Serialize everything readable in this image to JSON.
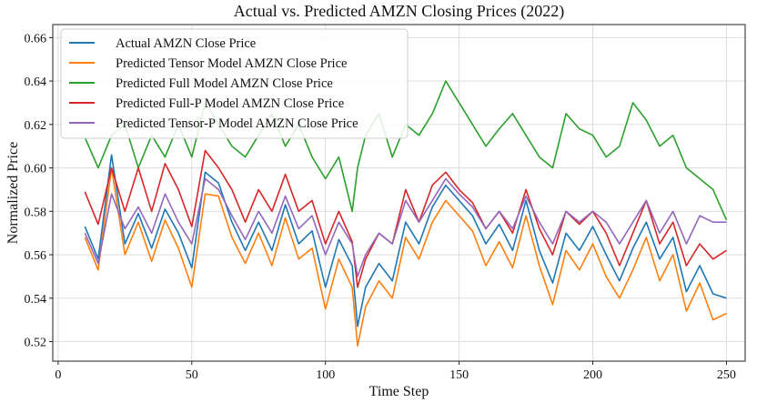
{
  "chart_data": {
    "type": "line",
    "title": "Actual vs. Predicted AMZN Closing Prices (2022)",
    "xlabel": "Time Step",
    "ylabel": "Normalized Price",
    "xlim": [
      -2,
      257
    ],
    "ylim": [
      0.511,
      0.666
    ],
    "xticks": [
      0,
      50,
      100,
      150,
      200,
      250
    ],
    "yticks": [
      0.52,
      0.54,
      0.56,
      0.58,
      0.6,
      0.62,
      0.64,
      0.66
    ],
    "xtick_labels": [
      "0",
      "50",
      "100",
      "150",
      "200",
      "250"
    ],
    "ytick_labels": [
      "0.52",
      "0.54",
      "0.56",
      "0.58",
      "0.60",
      "0.62",
      "0.64",
      "0.66"
    ],
    "grid": true,
    "legend_position": "top-left",
    "x": [
      10,
      15,
      20,
      25,
      30,
      35,
      40,
      45,
      50,
      55,
      60,
      65,
      70,
      75,
      80,
      85,
      90,
      95,
      100,
      105,
      110,
      112,
      115,
      120,
      125,
      130,
      135,
      140,
      145,
      150,
      155,
      160,
      165,
      170,
      175,
      180,
      185,
      190,
      195,
      200,
      205,
      210,
      215,
      220,
      225,
      230,
      235,
      240,
      245,
      250
    ],
    "series": [
      {
        "name": "Actual AMZN Close Price",
        "color": "#1f77b4",
        "values": [
          0.573,
          0.558,
          0.606,
          0.565,
          0.579,
          0.563,
          0.581,
          0.57,
          0.554,
          0.598,
          0.593,
          0.575,
          0.562,
          0.575,
          0.562,
          0.583,
          0.565,
          0.571,
          0.545,
          0.567,
          0.555,
          0.527,
          0.545,
          0.556,
          0.548,
          0.575,
          0.565,
          0.582,
          0.592,
          0.585,
          0.578,
          0.565,
          0.574,
          0.562,
          0.585,
          0.562,
          0.547,
          0.57,
          0.562,
          0.573,
          0.56,
          0.548,
          0.563,
          0.575,
          0.558,
          0.568,
          0.543,
          0.555,
          0.542,
          0.54
        ]
      },
      {
        "name": "Predicted Tensor Model AMZN Close Price",
        "color": "#ff7f0e",
        "values": [
          0.568,
          0.553,
          0.6,
          0.56,
          0.575,
          0.557,
          0.576,
          0.563,
          0.545,
          0.588,
          0.587,
          0.568,
          0.556,
          0.57,
          0.555,
          0.577,
          0.558,
          0.563,
          0.535,
          0.558,
          0.545,
          0.518,
          0.536,
          0.548,
          0.54,
          0.568,
          0.558,
          0.575,
          0.585,
          0.578,
          0.571,
          0.555,
          0.566,
          0.554,
          0.578,
          0.555,
          0.537,
          0.562,
          0.553,
          0.565,
          0.55,
          0.54,
          0.553,
          0.568,
          0.548,
          0.56,
          0.534,
          0.547,
          0.53,
          0.533
        ]
      },
      {
        "name": "Predicted Full Model AMZN Close Price",
        "color": "#2ca02c",
        "values": [
          0.614,
          0.6,
          0.615,
          0.62,
          0.6,
          0.615,
          0.605,
          0.62,
          0.605,
          0.63,
          0.62,
          0.61,
          0.605,
          0.615,
          0.625,
          0.61,
          0.62,
          0.605,
          0.595,
          0.605,
          0.58,
          0.6,
          0.615,
          0.625,
          0.605,
          0.62,
          0.615,
          0.625,
          0.64,
          0.63,
          0.62,
          0.61,
          0.618,
          0.625,
          0.615,
          0.605,
          0.6,
          0.625,
          0.618,
          0.615,
          0.605,
          0.61,
          0.63,
          0.622,
          0.61,
          0.615,
          0.6,
          0.595,
          0.59,
          0.576
        ]
      },
      {
        "name": "Predicted Full-P Model AMZN Close Price",
        "color": "#d62728",
        "values": [
          0.589,
          0.574,
          0.6,
          0.58,
          0.6,
          0.58,
          0.602,
          0.59,
          0.573,
          0.608,
          0.6,
          0.59,
          0.575,
          0.59,
          0.58,
          0.597,
          0.58,
          0.585,
          0.565,
          0.58,
          0.566,
          0.545,
          0.558,
          0.57,
          0.565,
          0.59,
          0.575,
          0.592,
          0.598,
          0.59,
          0.584,
          0.572,
          0.58,
          0.57,
          0.59,
          0.572,
          0.56,
          0.58,
          0.574,
          0.58,
          0.57,
          0.555,
          0.57,
          0.585,
          0.565,
          0.575,
          0.555,
          0.565,
          0.558,
          0.562
        ]
      },
      {
        "name": "Predicted Tensor-P Model AMZN Close Price",
        "color": "#9467bd",
        "values": [
          0.57,
          0.556,
          0.588,
          0.572,
          0.582,
          0.57,
          0.588,
          0.575,
          0.565,
          0.595,
          0.59,
          0.578,
          0.567,
          0.58,
          0.57,
          0.587,
          0.572,
          0.578,
          0.56,
          0.575,
          0.565,
          0.55,
          0.56,
          0.57,
          0.565,
          0.585,
          0.575,
          0.585,
          0.595,
          0.588,
          0.582,
          0.572,
          0.58,
          0.572,
          0.587,
          0.575,
          0.565,
          0.58,
          0.575,
          0.58,
          0.575,
          0.565,
          0.575,
          0.585,
          0.57,
          0.58,
          0.565,
          0.578,
          0.575,
          0.575
        ]
      }
    ]
  }
}
